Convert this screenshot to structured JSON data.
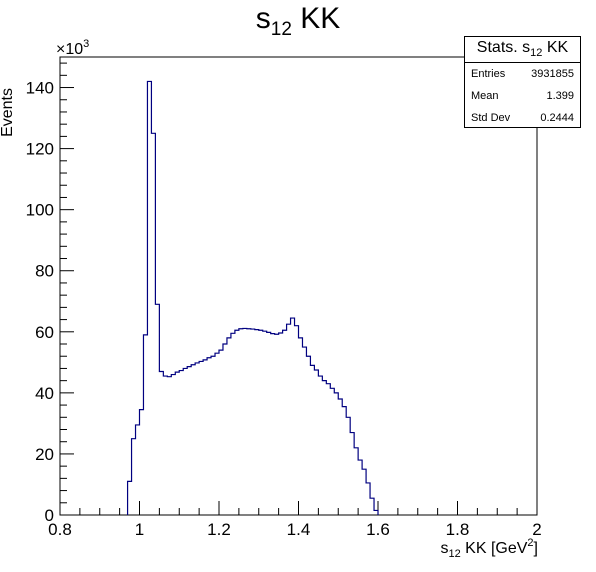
{
  "title": {
    "main": "s",
    "sub": "12",
    "rest": " KK"
  },
  "stats": {
    "header_main": "Stats. s",
    "header_sub": "12",
    "header_rest": " KK",
    "rows": [
      {
        "label": "Entries",
        "value": "3931855"
      },
      {
        "label": "Mean",
        "value": "1.399"
      },
      {
        "label": "Std Dev",
        "value": "0.2444"
      }
    ]
  },
  "chart_data": {
    "type": "bar",
    "style": "step-histogram",
    "line_color": "#000080",
    "xlabel": {
      "main": "s",
      "sub": "12",
      "rest": " KK [GeV",
      "sup": "2",
      "close": "]"
    },
    "ylabel": "Events",
    "y_multiplier": "×10",
    "y_multiplier_exp": "3",
    "xlim": [
      0.8,
      2.0
    ],
    "ylim": [
      0,
      150
    ],
    "x_ticks": [
      "0.8",
      "1",
      "1.2",
      "1.4",
      "1.6",
      "1.8",
      "2"
    ],
    "y_ticks": [
      "0",
      "20",
      "40",
      "60",
      "80",
      "100",
      "120",
      "140"
    ],
    "bin_width": 0.01,
    "bin_start": 0.8,
    "values": [
      0,
      0,
      0,
      0,
      0,
      0,
      0,
      0,
      0,
      0,
      0,
      0,
      0,
      0,
      0,
      0,
      0,
      11,
      25,
      29.5,
      34.5,
      59,
      142,
      125,
      69,
      47,
      45.5,
      45.3,
      46,
      46.8,
      47.3,
      48,
      48.6,
      49.2,
      49.8,
      50.3,
      50.8,
      51.5,
      52,
      53,
      54,
      56,
      58,
      59.5,
      60.5,
      61,
      61.1,
      61,
      60.9,
      60.7,
      60.5,
      60.2,
      59.8,
      59.4,
      59.2,
      59.6,
      60.5,
      62.5,
      64.5,
      62,
      58,
      55,
      52,
      49,
      47.5,
      45.5,
      44,
      43,
      41.5,
      40,
      38,
      35.5,
      32,
      27,
      22,
      18,
      15,
      10.5,
      5.5,
      1.5,
      0,
      0,
      0,
      0,
      0,
      0,
      0,
      0,
      0,
      0,
      0,
      0,
      0,
      0,
      0,
      0,
      0,
      0,
      0,
      0,
      0
    ]
  }
}
